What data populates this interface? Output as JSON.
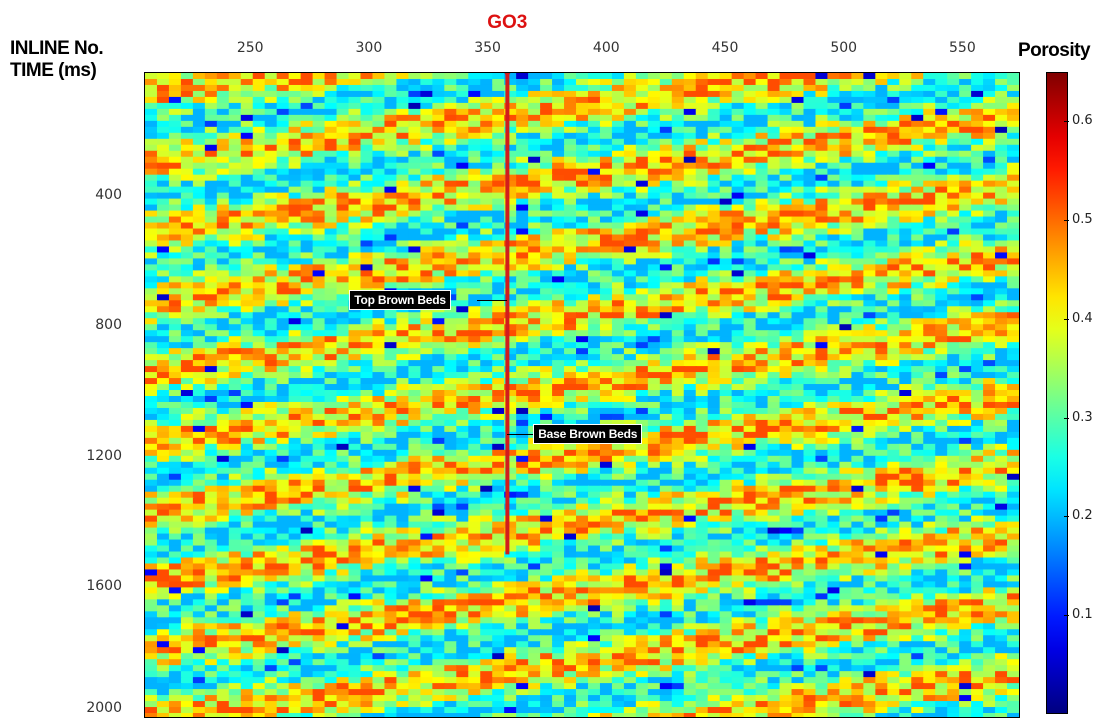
{
  "chart_data": {
    "type": "heatmap",
    "title": "",
    "xlabel": "INLINE No.",
    "ylabel": "TIME (ms)",
    "x_ticks": [
      250,
      300,
      350,
      400,
      450,
      500,
      550
    ],
    "y_ticks": [
      400,
      800,
      1200,
      1600,
      2000
    ],
    "xlim": [
      205,
      574
    ],
    "ylim": [
      20,
      2000
    ],
    "colorbar": {
      "label": "Porosity",
      "ticks": [
        0.1,
        0.2,
        0.3,
        0.4,
        0.5,
        0.6
      ],
      "range": [
        0.0,
        0.65
      ],
      "colormap": "jet"
    },
    "well": {
      "name": "GO3",
      "inline": 358,
      "time_top": 20,
      "time_bottom": 1500,
      "color": "#d11d1d"
    },
    "horizons": [
      {
        "label": "Top Brown Beds",
        "time": 720
      },
      {
        "label": "Base Brown Beds",
        "time": 1130
      }
    ]
  }
}
